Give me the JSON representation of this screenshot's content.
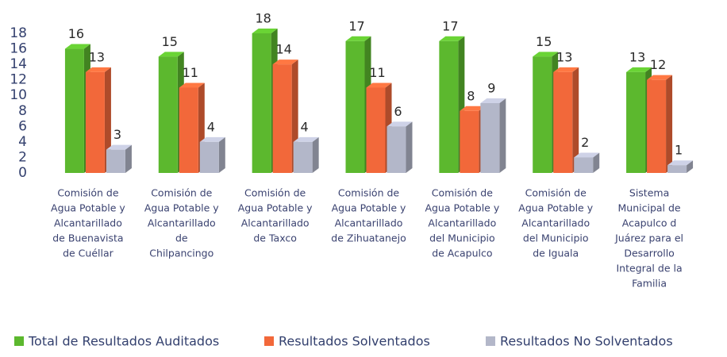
{
  "chart_data": {
    "type": "bar3d",
    "categories": [
      [
        "Comisión de",
        "Agua Potable y",
        "Alcantarillado",
        "de Buenavista",
        "de Cuéllar"
      ],
      [
        "Comisión de",
        "Agua Potable y",
        "Alcantarillado",
        "de",
        "Chilpancingo"
      ],
      [
        "Comisión de",
        "Agua Potable y",
        "Alcantarillado",
        "de  Taxco"
      ],
      [
        "Comisión de",
        "Agua Potable y",
        "Alcantarillado",
        "de Zihuatanejo"
      ],
      [
        "Comisión de",
        "Agua Potable y",
        "Alcantarillado",
        "del Municipio",
        "de Acapulco"
      ],
      [
        "Comisión de",
        "Agua Potable y",
        "Alcantarillado",
        "del Municipio",
        "de Iguala"
      ],
      [
        "Sistema",
        "Municipal de",
        "Acapulco d",
        "Juárez para el",
        "Desarrollo",
        "Integral de la",
        "Familia"
      ]
    ],
    "series": [
      {
        "name": "Total de Resultados Auditados",
        "color": "#5cb82e",
        "values": [
          16,
          15,
          18,
          17,
          17,
          15,
          13
        ]
      },
      {
        "name": "Resultados Solventados",
        "color": "#f2683a",
        "values": [
          13,
          11,
          14,
          11,
          8,
          13,
          12
        ]
      },
      {
        "name": "Resultados No Solventados",
        "color": "#b3b7c9",
        "values": [
          3,
          4,
          4,
          6,
          9,
          2,
          1
        ]
      }
    ],
    "ylim": [
      0,
      18
    ],
    "yticks": [
      0,
      2,
      4,
      6,
      8,
      10,
      12,
      14,
      16,
      18
    ],
    "grid": false,
    "legend": "bottom"
  }
}
